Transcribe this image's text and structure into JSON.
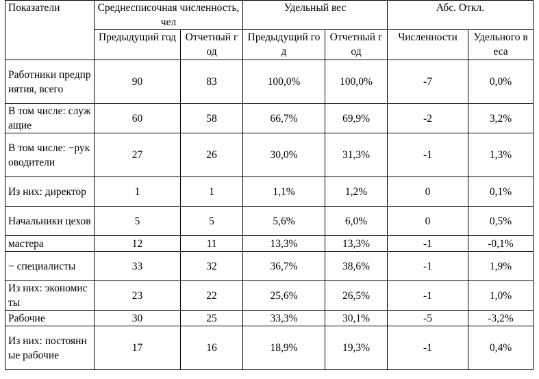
{
  "header": {
    "indicators": "Показатели",
    "avg_headcount": "Среднесписочная численность, чел",
    "share": "Удельный вес",
    "abs_dev": "Абс. Откл."
  },
  "subheader": {
    "prev_year_1": "Предыдущий год",
    "report_year_1": "Отчетный год",
    "prev_year_2": "Предыдущий год",
    "report_year_2": "Отчетный год",
    "headcount": "Численности",
    "share": "Удельного веса"
  },
  "rows": [
    {
      "label": "Работники предприятия, всего",
      "prev": "90",
      "curr": "83",
      "share_prev": "100,0%",
      "share_curr": "100,0%",
      "abs_num": "-7",
      "abs_share": "0,0%"
    },
    {
      "label": "В том числе: служащие",
      "prev": "60",
      "curr": "58",
      "share_prev": "66,7%",
      "share_curr": "69,9%",
      "abs_num": "-2",
      "abs_share": "3,2%"
    },
    {
      "label": "В том числе: −руководители",
      "prev": "27",
      "curr": "26",
      "share_prev": "30,0%",
      "share_curr": "31,3%",
      "abs_num": "-1",
      "abs_share": "1,3%"
    },
    {
      "label": "Из них: директор",
      "prev": "1",
      "curr": "1",
      "share_prev": "1,1%",
      "share_curr": "1,2%",
      "abs_num": "0",
      "abs_share": "0,1%"
    },
    {
      "label": "Начальники цехов",
      "prev": "5",
      "curr": "5",
      "share_prev": "5,6%",
      "share_curr": "6,0%",
      "abs_num": "0",
      "abs_share": "0,5%"
    },
    {
      "label": "мастера",
      "prev": "12",
      "curr": "11",
      "share_prev": "13,3%",
      "share_curr": "13,3%",
      "abs_num": "-1",
      "abs_share": "-0,1%"
    },
    {
      "label": "− специалисты",
      "prev": "33",
      "curr": "32",
      "share_prev": "36,7%",
      "share_curr": "38,6%",
      "abs_num": "-1",
      "abs_share": "1,9%"
    },
    {
      "label": "Из них: экономисты",
      "prev": "23",
      "curr": "22",
      "share_prev": "25,6%",
      "share_curr": "26,5%",
      "abs_num": "-1",
      "abs_share": "1,0%"
    },
    {
      "label": "Рабочие",
      "prev": "30",
      "curr": "25",
      "share_prev": "33,3%",
      "share_curr": "30,1%",
      "abs_num": "-5",
      "abs_share": "-3,2%"
    },
    {
      "label": "Из них: постоянные рабочие",
      "prev": "17",
      "curr": "16",
      "share_prev": "18,9%",
      "share_curr": "19,3%",
      "abs_num": "-1",
      "abs_share": "0,4%"
    }
  ]
}
